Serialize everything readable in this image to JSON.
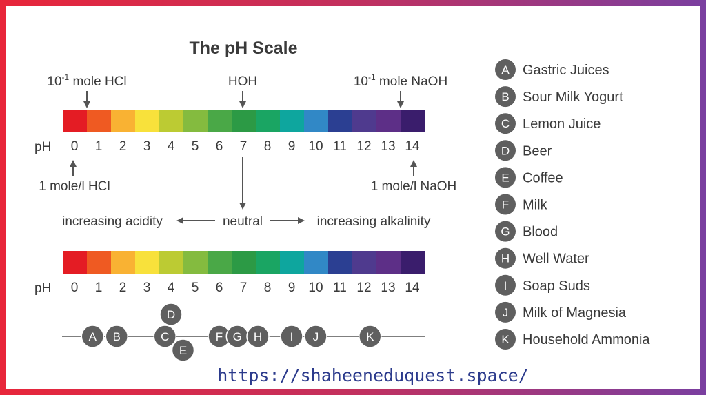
{
  "title": "The pH Scale",
  "ph_label": "pH",
  "ph_values": [
    "0",
    "1",
    "2",
    "3",
    "4",
    "5",
    "6",
    "7",
    "8",
    "9",
    "10",
    "11",
    "12",
    "13",
    "14"
  ],
  "scale_colors": [
    "#e41c24",
    "#ef5a22",
    "#f9b233",
    "#f8e13b",
    "#bccb33",
    "#84bb3f",
    "#4aa847",
    "#2c9a45",
    "#1aa563",
    "#0ea69e",
    "#3188c6",
    "#2b3f92",
    "#4f3a8e",
    "#5d2f87",
    "#3a1d6c"
  ],
  "top_labels": {
    "acid_strong_prefix": "10",
    "acid_strong_exp": "-1",
    "acid_strong_suffix": " mole HCl",
    "neutral": "HOH",
    "base_strong_prefix": "10",
    "base_strong_exp": "-1",
    "base_strong_suffix": " mole NaOH"
  },
  "bottom_labels": {
    "acid": "1 mole/l HCl",
    "base": "1 mole/l NaOH"
  },
  "direction": {
    "acidity": "increasing acidity",
    "neutral": "neutral",
    "alkalinity": "increasing alkalinity"
  },
  "markers": [
    {
      "letter": "A",
      "ph": 0.75
    },
    {
      "letter": "B",
      "ph": 1.75
    },
    {
      "letter": "C",
      "ph": 3.75
    },
    {
      "letter": "D",
      "ph": 4.0
    },
    {
      "letter": "E",
      "ph": 4.5
    },
    {
      "letter": "F",
      "ph": 6.0
    },
    {
      "letter": "G",
      "ph": 6.75
    },
    {
      "letter": "H",
      "ph": 7.6
    },
    {
      "letter": "I",
      "ph": 9.0
    },
    {
      "letter": "J",
      "ph": 10.0
    },
    {
      "letter": "K",
      "ph": 12.25
    }
  ],
  "legend": [
    {
      "letter": "A",
      "label": "Gastric Juices"
    },
    {
      "letter": "B",
      "label": "Sour Milk Yogurt"
    },
    {
      "letter": "C",
      "label": "Lemon Juice"
    },
    {
      "letter": "D",
      "label": "Beer"
    },
    {
      "letter": "E",
      "label": "Coffee"
    },
    {
      "letter": "F",
      "label": "Milk"
    },
    {
      "letter": "G",
      "label": "Blood"
    },
    {
      "letter": "H",
      "label": "Well Water"
    },
    {
      "letter": "I",
      "label": "Soap Suds"
    },
    {
      "letter": "J",
      "label": "Milk of Magnesia"
    },
    {
      "letter": "K",
      "label": "Household Ammonia"
    }
  ],
  "colors": {
    "circle": "#5f5f5f",
    "text": "#3a3a3a",
    "url": "#2b3a8c",
    "frame_left": "#e8263a",
    "frame_right": "#7a3fa0"
  },
  "url": "https://shaheeneduquest.space/"
}
